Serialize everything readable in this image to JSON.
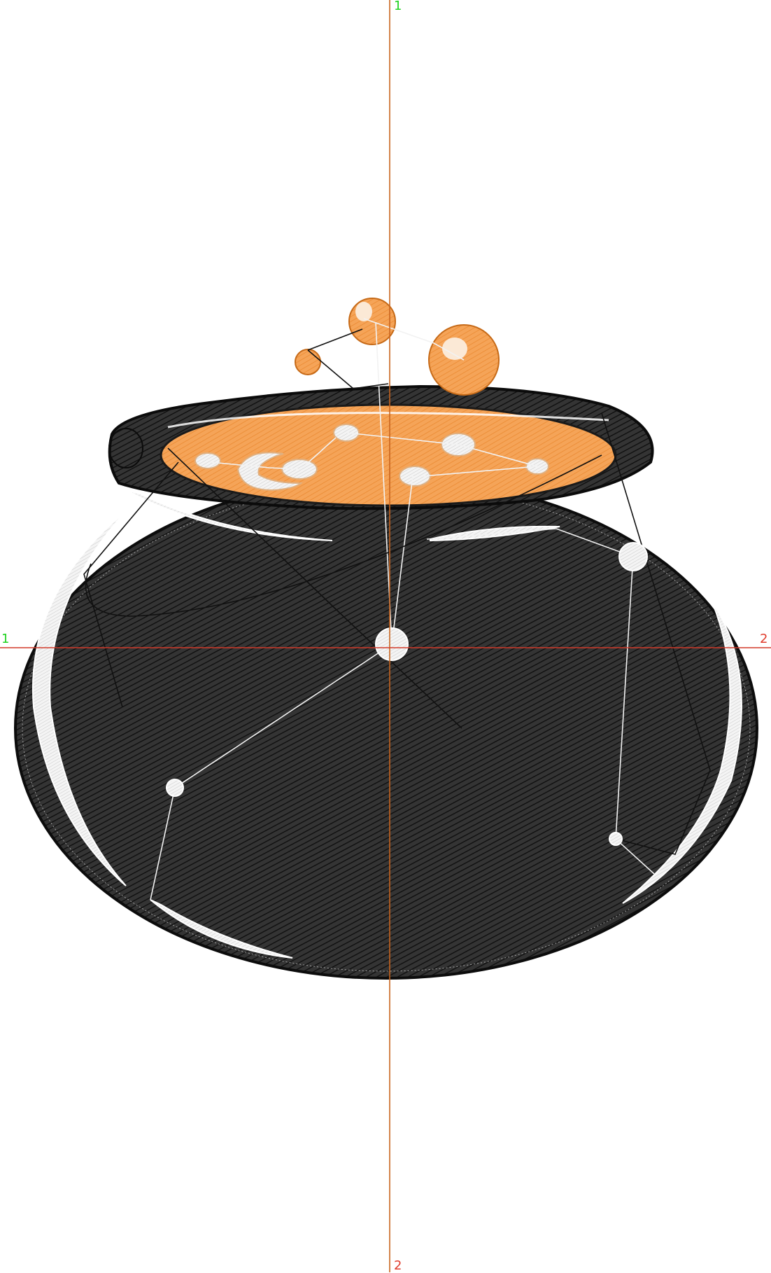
{
  "design": {
    "colors": {
      "background": "#ffffff",
      "pot_fill": "#2e2e2e",
      "pot_stitch": "#111111",
      "highlight": "#e9e9e9",
      "brew_fill": "#f29a45",
      "brew_stitch": "#e07a22",
      "bubble_highlight": "#fbe9d6",
      "guide_vertical": "#c8641e",
      "guide_horizontal": "#d23a2a",
      "guide_label": "#1fd21f",
      "guide_label_alt": "#e03b2b",
      "travel_white": "#f2f2f2",
      "travel_black": "#111111"
    },
    "guide_labels": {
      "vertical_top": "1",
      "vertical_bottom": "2",
      "horizontal_left": "1",
      "horizontal_right": "2"
    }
  }
}
